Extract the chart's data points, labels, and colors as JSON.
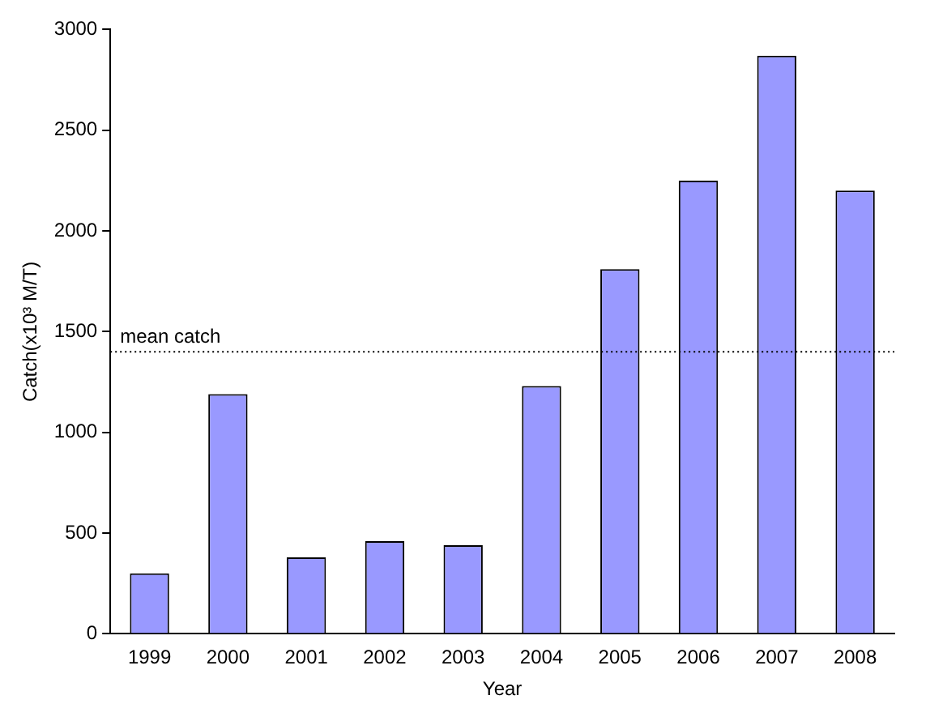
{
  "chart_data": {
    "type": "bar",
    "xlabel": "Year",
    "ylabel": "Catch(x10³ M/T)",
    "categories": [
      "1999",
      "2000",
      "2001",
      "2002",
      "2003",
      "2004",
      "2005",
      "2006",
      "2007",
      "2008"
    ],
    "values": [
      300,
      1190,
      380,
      460,
      440,
      1230,
      1810,
      2250,
      2870,
      2200
    ],
    "color": "#9999ff",
    "ylim": [
      0,
      3000
    ],
    "yticks": [
      0,
      500,
      1000,
      1500,
      2000,
      2500,
      3000
    ],
    "grid": false,
    "legend": false,
    "ref_lines": [
      {
        "axis": "y",
        "value": 1400,
        "label": "mean catch",
        "color": "#000000",
        "line_style": "dotted"
      }
    ]
  }
}
